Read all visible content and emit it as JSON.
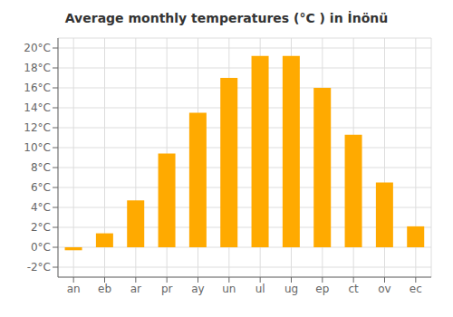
{
  "chart_data": {
    "type": "bar",
    "title": "Average monthly temperatures (°C ) in İnönü",
    "categories": [
      "an",
      "eb",
      "ar",
      "pr",
      "ay",
      "un",
      "ul",
      "ug",
      "ep",
      "ct",
      "ov",
      "ec"
    ],
    "values": [
      -0.3,
      1.4,
      4.7,
      9.4,
      13.5,
      17.0,
      19.2,
      19.2,
      16.0,
      11.3,
      6.5,
      2.1
    ],
    "color": "#FFAA00",
    "ylim": [
      -3,
      21
    ],
    "yticks": [
      {
        "value": -2,
        "label": "-2°C"
      },
      {
        "value": 0,
        "label": "0°C"
      },
      {
        "value": 2,
        "label": "2°C"
      },
      {
        "value": 4,
        "label": "4°C"
      },
      {
        "value": 6,
        "label": "6°C"
      },
      {
        "value": 8,
        "label": "8°C"
      },
      {
        "value": 10,
        "label": "10°C"
      },
      {
        "value": 12,
        "label": "12°C"
      },
      {
        "value": 14,
        "label": "14°C"
      },
      {
        "value": 16,
        "label": "16°C"
      },
      {
        "value": 18,
        "label": "18°C"
      },
      {
        "value": 20,
        "label": "20°C"
      }
    ],
    "grid": true
  }
}
